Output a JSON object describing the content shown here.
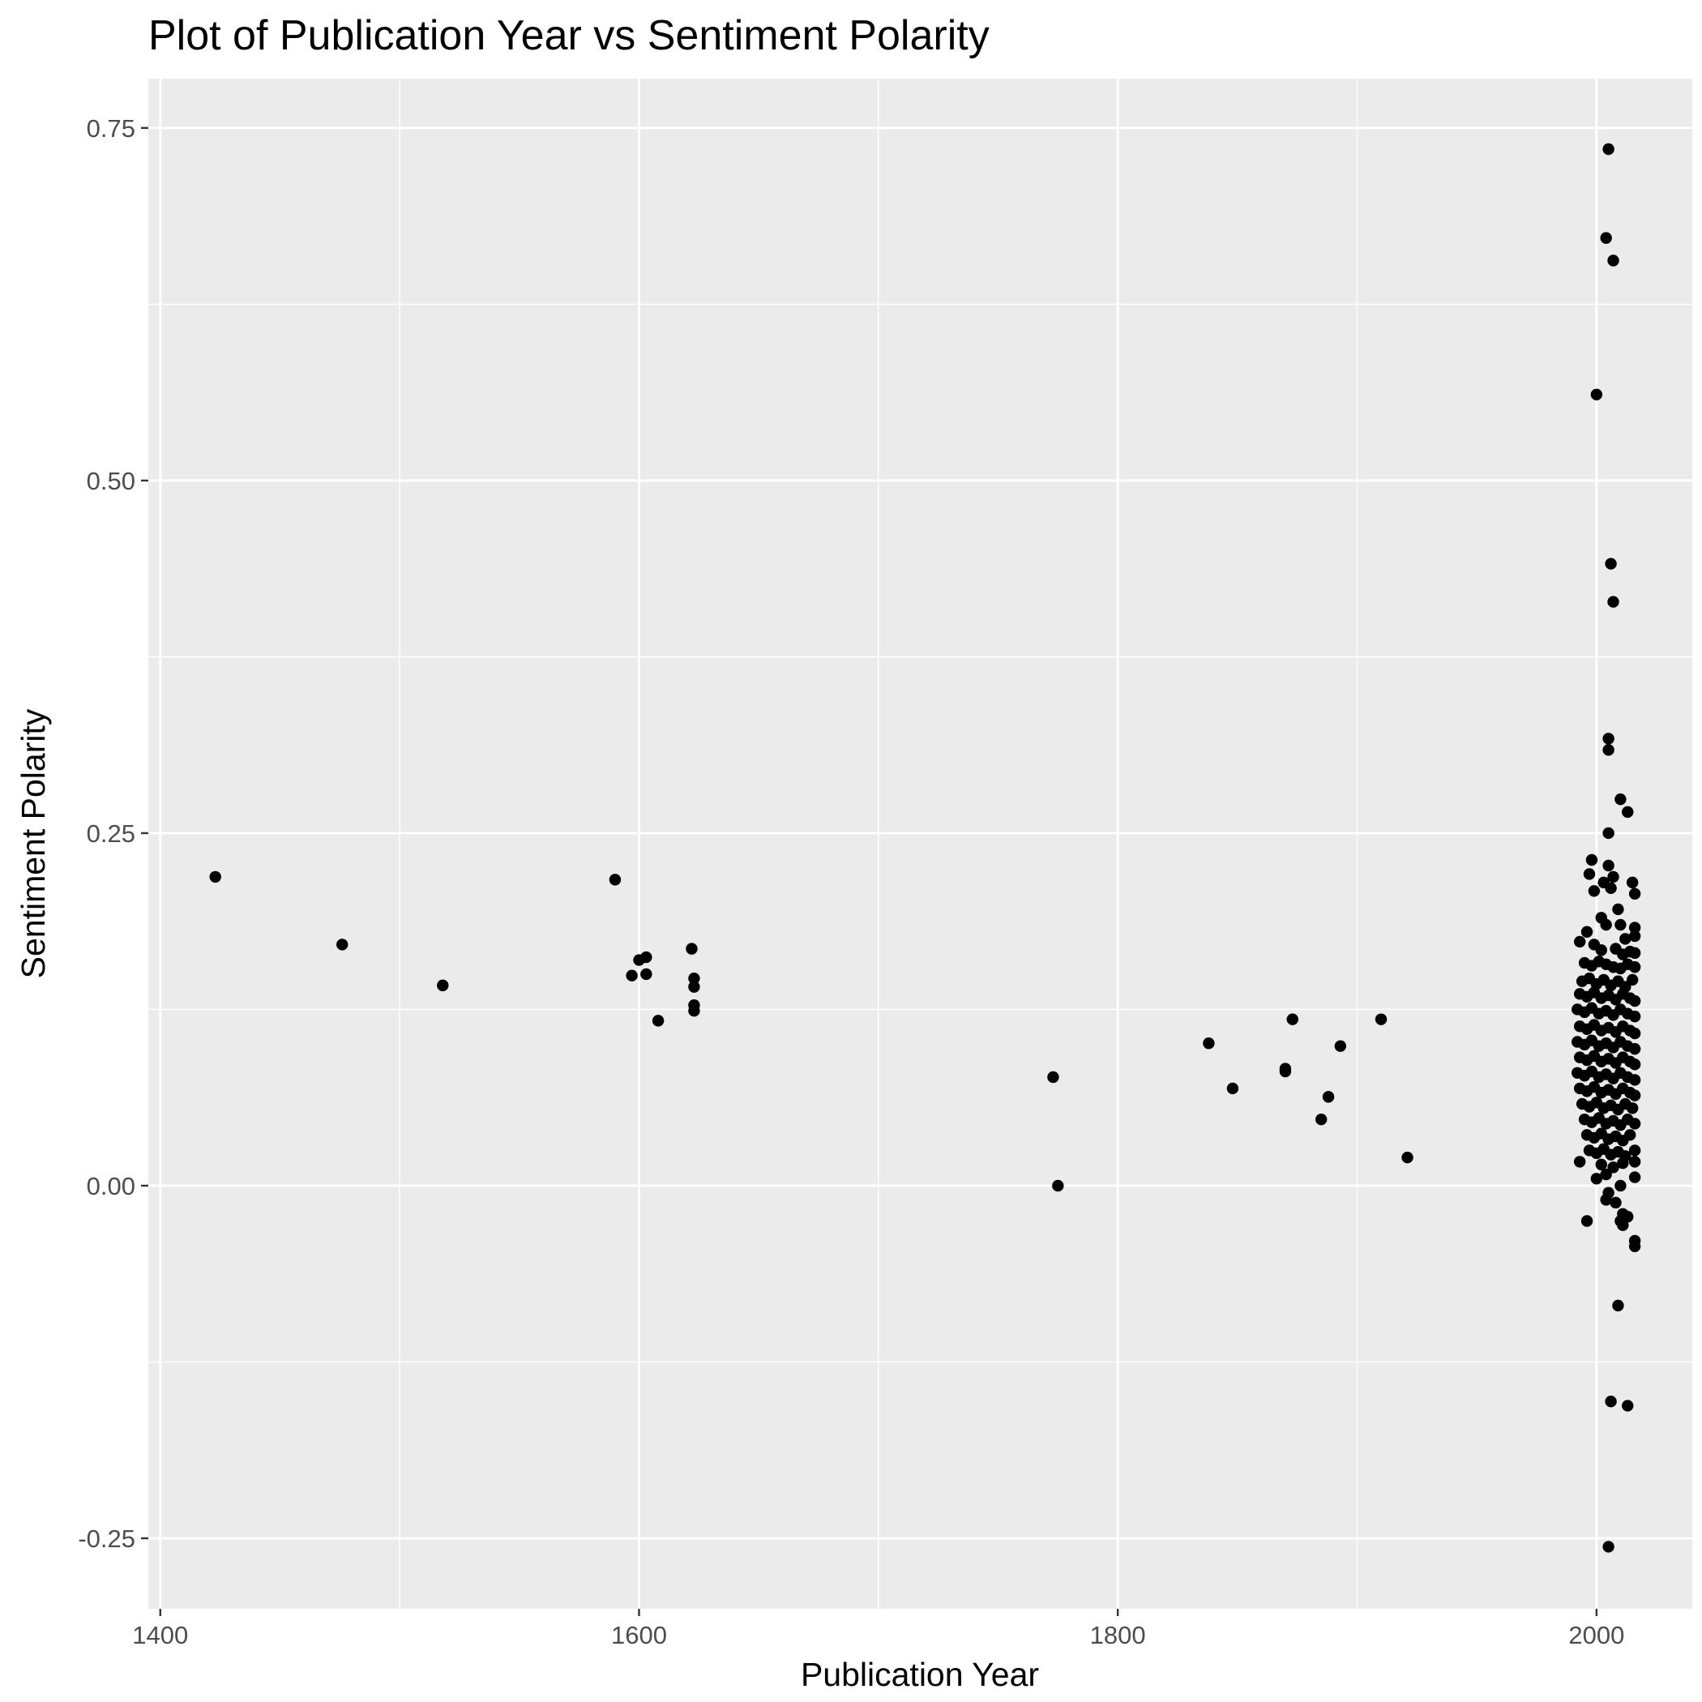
{
  "chart_data": {
    "type": "scatter",
    "title": "Plot of Publication Year vs Sentiment Polarity",
    "xlabel": "Publication Year",
    "ylabel": "Sentiment Polarity",
    "xlim": [
      1395,
      2040
    ],
    "ylim": [
      -0.3,
      0.785
    ],
    "x_ticks": [
      1400,
      1600,
      1800,
      2000
    ],
    "x_minor_ticks": [
      1500,
      1700,
      1900
    ],
    "y_ticks": [
      -0.25,
      0.0,
      0.25,
      0.5,
      0.75
    ],
    "y_tick_labels": [
      "-0.25",
      "0.00",
      "0.25",
      "0.50",
      "0.75"
    ],
    "y_minor_ticks": [
      -0.125,
      0.125,
      0.375,
      0.625
    ],
    "grid": true,
    "legend": "none",
    "point_color": "#000000",
    "background_color": "#ebebeb",
    "grid_color": "#ffffff",
    "points": [
      [
        1423,
        0.219
      ],
      [
        1476,
        0.171
      ],
      [
        1518,
        0.142
      ],
      [
        1590,
        0.217
      ],
      [
        1597,
        0.149
      ],
      [
        1600,
        0.16
      ],
      [
        1603,
        0.15
      ],
      [
        1603,
        0.162
      ],
      [
        1608,
        0.117
      ],
      [
        1622,
        0.168
      ],
      [
        1623,
        0.147
      ],
      [
        1623,
        0.141
      ],
      [
        1623,
        0.128
      ],
      [
        1623,
        0.124
      ],
      [
        1773,
        0.077
      ],
      [
        1775,
        0.0
      ],
      [
        1838,
        0.101
      ],
      [
        1848,
        0.069
      ],
      [
        1870,
        0.083
      ],
      [
        1870,
        0.081
      ],
      [
        1873,
        0.118
      ],
      [
        1885,
        0.047
      ],
      [
        1888,
        0.063
      ],
      [
        1893,
        0.099
      ],
      [
        1910,
        0.118
      ],
      [
        1921,
        0.02
      ],
      [
        2005,
        0.735
      ],
      [
        2004,
        0.672
      ],
      [
        2007,
        0.656
      ],
      [
        2000,
        0.561
      ],
      [
        2006,
        0.441
      ],
      [
        2007,
        0.414
      ],
      [
        2005,
        0.317
      ],
      [
        2005,
        0.309
      ],
      [
        2010,
        0.274
      ],
      [
        2013,
        0.265
      ],
      [
        2005,
        0.25
      ],
      [
        1998,
        0.231
      ],
      [
        2005,
        0.227
      ],
      [
        1997,
        0.221
      ],
      [
        2007,
        0.219
      ],
      [
        2003,
        0.215
      ],
      [
        1999,
        0.209
      ],
      [
        2006,
        0.211
      ],
      [
        2009,
        0.196
      ],
      [
        2015,
        0.215
      ],
      [
        2016,
        0.207
      ],
      [
        2002,
        0.19
      ],
      [
        2004,
        0.185
      ],
      [
        2010,
        0.185
      ],
      [
        1996,
        0.18
      ],
      [
        2016,
        0.183
      ],
      [
        2012,
        0.175
      ],
      [
        2016,
        0.177
      ],
      [
        1993,
        0.173
      ],
      [
        1999,
        0.171
      ],
      [
        2002,
        0.167
      ],
      [
        2008,
        0.168
      ],
      [
        2011,
        0.164
      ],
      [
        2014,
        0.166
      ],
      [
        2016,
        0.165
      ],
      [
        1995,
        0.158
      ],
      [
        1998,
        0.156
      ],
      [
        2001,
        0.159
      ],
      [
        2004,
        0.157
      ],
      [
        2007,
        0.155
      ],
      [
        2010,
        0.154
      ],
      [
        2013,
        0.157
      ],
      [
        2016,
        0.155
      ],
      [
        1994,
        0.145
      ],
      [
        1997,
        0.147
      ],
      [
        2000,
        0.143
      ],
      [
        2003,
        0.146
      ],
      [
        2006,
        0.142
      ],
      [
        2009,
        0.145
      ],
      [
        2012,
        0.141
      ],
      [
        2015,
        0.146
      ],
      [
        1993,
        0.136
      ],
      [
        1996,
        0.134
      ],
      [
        1999,
        0.137
      ],
      [
        2002,
        0.133
      ],
      [
        2005,
        0.135
      ],
      [
        2008,
        0.132
      ],
      [
        2011,
        0.136
      ],
      [
        2014,
        0.133
      ],
      [
        2016,
        0.131
      ],
      [
        1992,
        0.125
      ],
      [
        1995,
        0.123
      ],
      [
        1998,
        0.126
      ],
      [
        2001,
        0.122
      ],
      [
        2004,
        0.124
      ],
      [
        2007,
        0.121
      ],
      [
        2010,
        0.125
      ],
      [
        2013,
        0.122
      ],
      [
        2016,
        0.12
      ],
      [
        1993,
        0.113
      ],
      [
        1996,
        0.111
      ],
      [
        1999,
        0.114
      ],
      [
        2002,
        0.11
      ],
      [
        2005,
        0.112
      ],
      [
        2008,
        0.109
      ],
      [
        2011,
        0.113
      ],
      [
        2014,
        0.11
      ],
      [
        2016,
        0.108
      ],
      [
        1992,
        0.102
      ],
      [
        1995,
        0.1
      ],
      [
        1998,
        0.103
      ],
      [
        2001,
        0.099
      ],
      [
        2004,
        0.101
      ],
      [
        2007,
        0.098
      ],
      [
        2010,
        0.102
      ],
      [
        2013,
        0.099
      ],
      [
        2016,
        0.097
      ],
      [
        1993,
        0.091
      ],
      [
        1996,
        0.089
      ],
      [
        1999,
        0.092
      ],
      [
        2002,
        0.088
      ],
      [
        2005,
        0.09
      ],
      [
        2008,
        0.087
      ],
      [
        2011,
        0.091
      ],
      [
        2014,
        0.088
      ],
      [
        2016,
        0.086
      ],
      [
        1992,
        0.08
      ],
      [
        1995,
        0.078
      ],
      [
        1998,
        0.081
      ],
      [
        2001,
        0.077
      ],
      [
        2004,
        0.079
      ],
      [
        2007,
        0.076
      ],
      [
        2010,
        0.08
      ],
      [
        2013,
        0.077
      ],
      [
        2016,
        0.075
      ],
      [
        1993,
        0.069
      ],
      [
        1996,
        0.067
      ],
      [
        1999,
        0.07
      ],
      [
        2002,
        0.066
      ],
      [
        2005,
        0.068
      ],
      [
        2008,
        0.065
      ],
      [
        2011,
        0.069
      ],
      [
        2014,
        0.066
      ],
      [
        2016,
        0.064
      ],
      [
        1994,
        0.058
      ],
      [
        1997,
        0.056
      ],
      [
        2000,
        0.059
      ],
      [
        2003,
        0.055
      ],
      [
        2006,
        0.057
      ],
      [
        2009,
        0.054
      ],
      [
        2012,
        0.058
      ],
      [
        2015,
        0.055
      ],
      [
        1995,
        0.047
      ],
      [
        1998,
        0.045
      ],
      [
        2001,
        0.048
      ],
      [
        2004,
        0.044
      ],
      [
        2007,
        0.046
      ],
      [
        2010,
        0.043
      ],
      [
        2013,
        0.047
      ],
      [
        2016,
        0.044
      ],
      [
        1996,
        0.036
      ],
      [
        1999,
        0.034
      ],
      [
        2002,
        0.037
      ],
      [
        2005,
        0.033
      ],
      [
        2008,
        0.035
      ],
      [
        2011,
        0.032
      ],
      [
        2014,
        0.036
      ],
      [
        1997,
        0.025
      ],
      [
        2000,
        0.023
      ],
      [
        2003,
        0.026
      ],
      [
        2006,
        0.022
      ],
      [
        2009,
        0.024
      ],
      [
        2012,
        0.021
      ],
      [
        2016,
        0.025
      ],
      [
        1993,
        0.017
      ],
      [
        2002,
        0.015
      ],
      [
        2007,
        0.013
      ],
      [
        2011,
        0.016
      ],
      [
        2016,
        0.017
      ],
      [
        2004,
        0.008
      ],
      [
        2000,
        0.005
      ],
      [
        2016,
        0.006
      ],
      [
        2010,
        0.0
      ],
      [
        2005,
        -0.005
      ],
      [
        2008,
        -0.012
      ],
      [
        2004,
        -0.01
      ],
      [
        1996,
        -0.025
      ],
      [
        2011,
        -0.02
      ],
      [
        2010,
        -0.025
      ],
      [
        2013,
        -0.022
      ],
      [
        2011,
        -0.028
      ],
      [
        2016,
        -0.039
      ],
      [
        2016,
        -0.043
      ],
      [
        2009,
        -0.085
      ],
      [
        2006,
        -0.153
      ],
      [
        2013,
        -0.156
      ],
      [
        2005,
        -0.256
      ]
    ]
  }
}
